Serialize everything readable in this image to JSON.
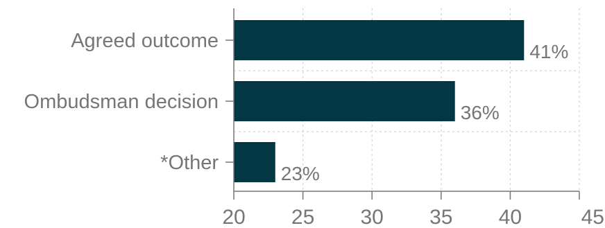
{
  "colors": {
    "bar": "#023743",
    "grid": "#d4d4d4",
    "axis": "#767676",
    "text": "#767676"
  },
  "chart_data": {
    "type": "bar",
    "orientation": "horizontal",
    "categories": [
      "Agreed outcome",
      "Ombudsman decision",
      "*Other"
    ],
    "values": [
      41,
      36,
      23
    ],
    "data_labels": [
      "41%",
      "36%",
      "23%"
    ],
    "xlim": [
      20,
      45
    ],
    "xticks": [
      20,
      25,
      30,
      35,
      40,
      45
    ],
    "xtick_labels": [
      "20",
      "25",
      "30",
      "35",
      "40",
      "45"
    ],
    "grid": true,
    "grid_style": "dotted"
  }
}
